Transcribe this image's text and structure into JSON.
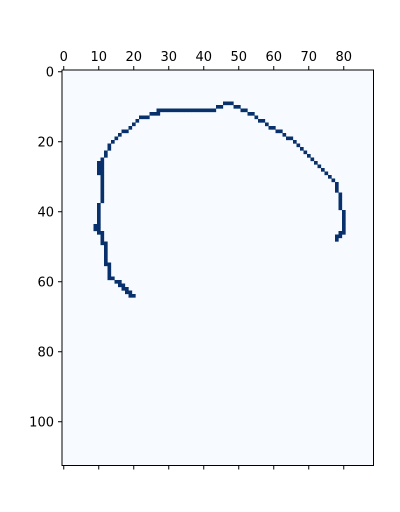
{
  "chart_data": {
    "type": "heatmap",
    "title": "",
    "xlabel": "",
    "ylabel": "",
    "cols": 89,
    "rows": 113,
    "xlim": [
      0,
      89
    ],
    "ylim": [
      113,
      0
    ],
    "x_axis_position": "top",
    "x_ticks": [
      0,
      10,
      20,
      30,
      40,
      50,
      60,
      70,
      80
    ],
    "y_ticks": [
      0,
      20,
      40,
      60,
      80,
      100
    ],
    "grid": false,
    "legend": "none",
    "background_color": "#f7fbff",
    "stroke_color": "#08306b",
    "stroke_pixels": [
      [
        19,
        64
      ],
      [
        20,
        64
      ],
      [
        18,
        63
      ],
      [
        19,
        63
      ],
      [
        17,
        62
      ],
      [
        18,
        62
      ],
      [
        16,
        61
      ],
      [
        17,
        61
      ],
      [
        15,
        60
      ],
      [
        16,
        60
      ],
      [
        13,
        59
      ],
      [
        14,
        59
      ],
      [
        13,
        58
      ],
      [
        13,
        57
      ],
      [
        13,
        56
      ],
      [
        12,
        55
      ],
      [
        13,
        55
      ],
      [
        12,
        54
      ],
      [
        12,
        53
      ],
      [
        12,
        52
      ],
      [
        12,
        51
      ],
      [
        12,
        50
      ],
      [
        11,
        49
      ],
      [
        12,
        49
      ],
      [
        11,
        48
      ],
      [
        11,
        47
      ],
      [
        10,
        46
      ],
      [
        11,
        46
      ],
      [
        9,
        45
      ],
      [
        10,
        45
      ],
      [
        9,
        44
      ],
      [
        10,
        44
      ],
      [
        10,
        43
      ],
      [
        10,
        42
      ],
      [
        10,
        41
      ],
      [
        10,
        40
      ],
      [
        10,
        39
      ],
      [
        10,
        38
      ],
      [
        11,
        37
      ],
      [
        11,
        36
      ],
      [
        11,
        35
      ],
      [
        11,
        34
      ],
      [
        11,
        33
      ],
      [
        11,
        32
      ],
      [
        11,
        31
      ],
      [
        11,
        30
      ],
      [
        10,
        29
      ],
      [
        11,
        29
      ],
      [
        10,
        28
      ],
      [
        11,
        28
      ],
      [
        10,
        27
      ],
      [
        11,
        27
      ],
      [
        10,
        26
      ],
      [
        11,
        26
      ],
      [
        11,
        25
      ],
      [
        12,
        24
      ],
      [
        12,
        23
      ],
      [
        13,
        22
      ],
      [
        13,
        21
      ],
      [
        14,
        20
      ],
      [
        15,
        19
      ],
      [
        16,
        18
      ],
      [
        17,
        17
      ],
      [
        18,
        17
      ],
      [
        19,
        16
      ],
      [
        20,
        15
      ],
      [
        21,
        14
      ],
      [
        22,
        13
      ],
      [
        23,
        13
      ],
      [
        24,
        13
      ],
      [
        25,
        12
      ],
      [
        26,
        12
      ],
      [
        27,
        12
      ],
      [
        27,
        11
      ],
      [
        28,
        11
      ],
      [
        29,
        11
      ],
      [
        30,
        11
      ],
      [
        31,
        11
      ],
      [
        32,
        11
      ],
      [
        33,
        11
      ],
      [
        34,
        11
      ],
      [
        35,
        11
      ],
      [
        36,
        11
      ],
      [
        37,
        11
      ],
      [
        38,
        11
      ],
      [
        39,
        11
      ],
      [
        40,
        11
      ],
      [
        41,
        11
      ],
      [
        42,
        11
      ],
      [
        43,
        11
      ],
      [
        44,
        10
      ],
      [
        45,
        10
      ],
      [
        46,
        9
      ],
      [
        47,
        9
      ],
      [
        48,
        9
      ],
      [
        49,
        10
      ],
      [
        50,
        10
      ],
      [
        51,
        11
      ],
      [
        52,
        11
      ],
      [
        53,
        12
      ],
      [
        54,
        12
      ],
      [
        55,
        13
      ],
      [
        56,
        14
      ],
      [
        57,
        14
      ],
      [
        58,
        15
      ],
      [
        59,
        16
      ],
      [
        60,
        16
      ],
      [
        61,
        17
      ],
      [
        62,
        17
      ],
      [
        63,
        18
      ],
      [
        64,
        19
      ],
      [
        65,
        19
      ],
      [
        66,
        20
      ],
      [
        67,
        21
      ],
      [
        68,
        22
      ],
      [
        69,
        23
      ],
      [
        70,
        24
      ],
      [
        71,
        25
      ],
      [
        72,
        26
      ],
      [
        73,
        27
      ],
      [
        74,
        28
      ],
      [
        75,
        29
      ],
      [
        76,
        30
      ],
      [
        77,
        31
      ],
      [
        78,
        32
      ],
      [
        78,
        33
      ],
      [
        78,
        34
      ],
      [
        79,
        35
      ],
      [
        79,
        36
      ],
      [
        79,
        37
      ],
      [
        79,
        38
      ],
      [
        79,
        39
      ],
      [
        80,
        40
      ],
      [
        80,
        41
      ],
      [
        80,
        42
      ],
      [
        80,
        43
      ],
      [
        80,
        44
      ],
      [
        80,
        45
      ],
      [
        80,
        46
      ],
      [
        79,
        46
      ],
      [
        79,
        47
      ],
      [
        78,
        47
      ],
      [
        78,
        48
      ]
    ]
  }
}
